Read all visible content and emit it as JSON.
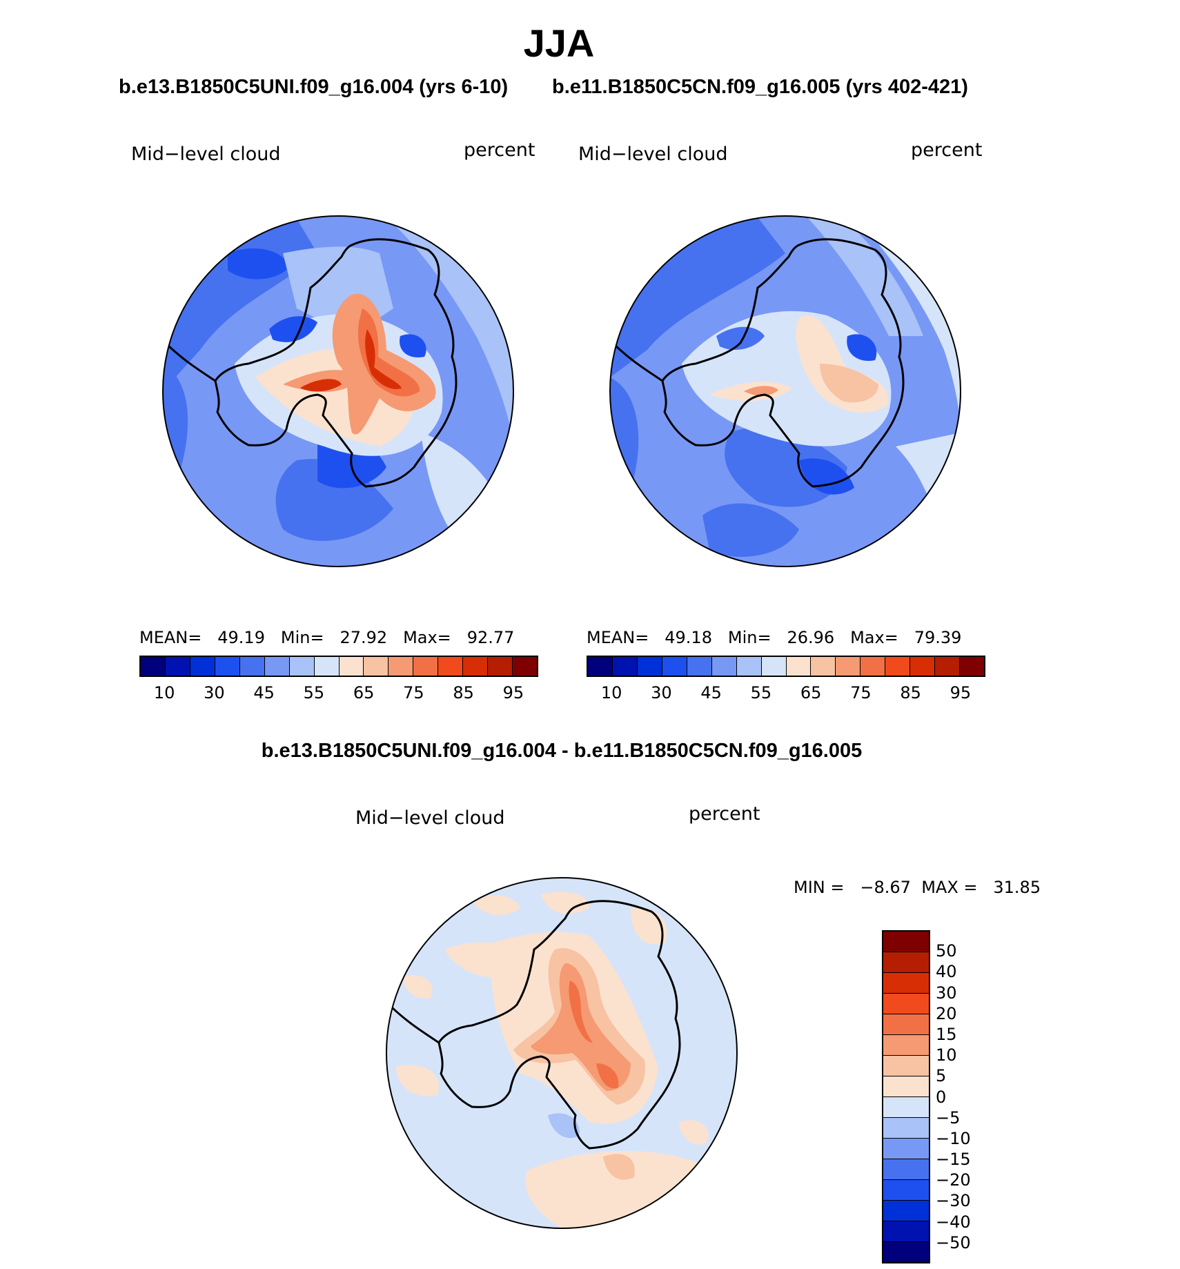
{
  "title": "JJA",
  "panels": [
    {
      "subtitle": "b.e13.B1850C5UNI.f09_g16.004 (yrs 6-10)",
      "variable": "Mid−level cloud",
      "units": "percent",
      "stats": {
        "mean_label": "MEAN=",
        "mean": "49.19",
        "min_label": "Min=",
        "min": "27.92",
        "max_label": "Max=",
        "max": "92.77"
      }
    },
    {
      "subtitle": "b.e11.B1850C5CN.f09_g16.005 (yrs 402-421)",
      "variable": "Mid−level cloud",
      "units": "percent",
      "stats": {
        "mean_label": "MEAN=",
        "mean": "49.18",
        "min_label": "Min=",
        "min": "26.96",
        "max_label": "Max=",
        "max": "79.39"
      }
    }
  ],
  "abs_colorbar": {
    "colors": [
      "#00007d",
      "#0012b0",
      "#0030d8",
      "#1e50f0",
      "#4672f0",
      "#7898f5",
      "#a9c2f7",
      "#d6e4fa",
      "#fbe2cf",
      "#f8c3a3",
      "#f59a72",
      "#f27045",
      "#f14a1c",
      "#d82e06",
      "#b51e02",
      "#7e0000"
    ],
    "tick_labels": [
      "10",
      "30",
      "45",
      "55",
      "65",
      "75",
      "85",
      "95"
    ]
  },
  "diff_panel": {
    "subtitle": "b.e13.B1850C5UNI.f09_g16.004 - b.e11.B1850C5CN.f09_g16.005",
    "variable": "Mid−level cloud",
    "units": "percent",
    "stats": {
      "min_label": "MIN =",
      "min": "−8.67",
      "max_label": "MAX =",
      "max": "31.85"
    }
  },
  "diff_colorbar": {
    "colors": [
      "#7e0000",
      "#b51e02",
      "#d82e06",
      "#f14a1c",
      "#f27045",
      "#f59a72",
      "#f8c3a3",
      "#fbe2cf",
      "#d6e4fa",
      "#a9c2f7",
      "#7898f5",
      "#4672f0",
      "#1e50f0",
      "#0030d8",
      "#0012b0",
      "#00007d"
    ],
    "tick_labels": [
      "50",
      "40",
      "30",
      "20",
      "15",
      "10",
      "5",
      "0",
      "−5",
      "−10",
      "−15",
      "−20",
      "−30",
      "−40",
      "−50"
    ]
  }
}
